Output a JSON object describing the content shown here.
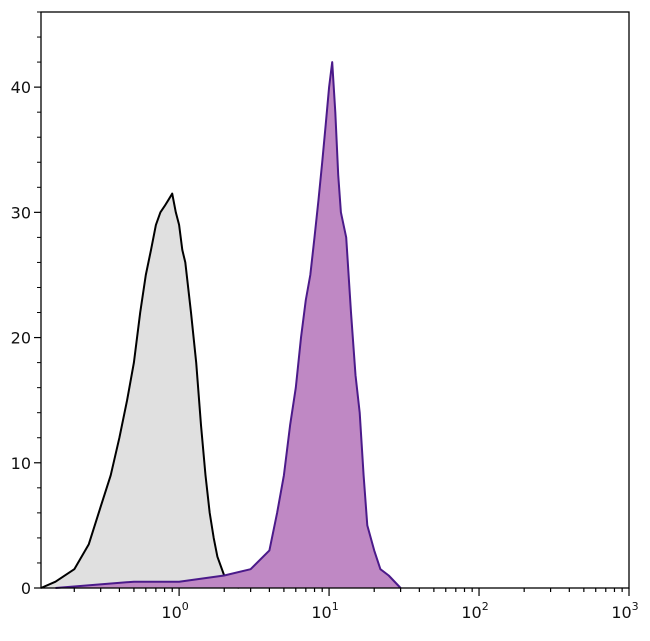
{
  "chart_data": {
    "type": "area",
    "xscale": "log",
    "xlim": [
      0.12,
      1000
    ],
    "ylim": [
      0,
      46
    ],
    "x_ticks": [
      {
        "value": 1,
        "base": "10",
        "exp": "0"
      },
      {
        "value": 10,
        "base": "10",
        "exp": "1"
      },
      {
        "value": 100,
        "base": "10",
        "exp": "2"
      },
      {
        "value": 1000,
        "base": "10",
        "exp": "3"
      }
    ],
    "y_ticks": [
      {
        "value": 0,
        "label": "0"
      },
      {
        "value": 10,
        "label": "10"
      },
      {
        "value": 20,
        "label": "20"
      },
      {
        "value": 30,
        "label": "30"
      },
      {
        "value": 40,
        "label": "40"
      }
    ],
    "grid": false,
    "legend": "none",
    "series": [
      {
        "fill": "#e0e0e0",
        "stroke": "#000000",
        "x": [
          0.12,
          0.15,
          0.2,
          0.25,
          0.3,
          0.35,
          0.4,
          0.45,
          0.5,
          0.55,
          0.6,
          0.65,
          0.7,
          0.75,
          0.8,
          0.85,
          0.9,
          0.95,
          1.0,
          1.05,
          1.1,
          1.2,
          1.3,
          1.4,
          1.5,
          1.6,
          1.7,
          1.8,
          2.0,
          2.2,
          2.5
        ],
        "y": [
          0,
          0.5,
          1.5,
          3.5,
          6.5,
          9,
          12,
          15,
          18,
          22,
          25,
          27,
          29,
          30,
          30.5,
          31,
          31.5,
          30,
          29,
          27,
          26,
          22,
          18,
          13,
          9,
          6,
          4,
          2.5,
          1,
          0.3,
          0
        ]
      },
      {
        "fill": "#bf88c4",
        "stroke": "#4b1a8a",
        "x": [
          0.15,
          0.5,
          1.0,
          2.0,
          3.0,
          4.0,
          4.5,
          5.0,
          5.5,
          6.0,
          6.5,
          7.0,
          7.5,
          8.0,
          8.5,
          9.0,
          9.5,
          10.0,
          10.5,
          11.0,
          11.5,
          12.0,
          13.0,
          14.0,
          15.0,
          16.0,
          17.0,
          18.0,
          20.0,
          22.0,
          25.0,
          30.0
        ],
        "y": [
          0,
          0.5,
          0.5,
          1,
          1.5,
          3,
          6,
          9,
          13,
          16,
          20,
          23,
          25,
          28,
          31,
          34,
          37,
          40,
          42,
          38,
          33,
          30,
          28,
          22,
          17,
          14,
          9,
          5,
          3,
          1.5,
          1,
          0
        ]
      }
    ]
  }
}
